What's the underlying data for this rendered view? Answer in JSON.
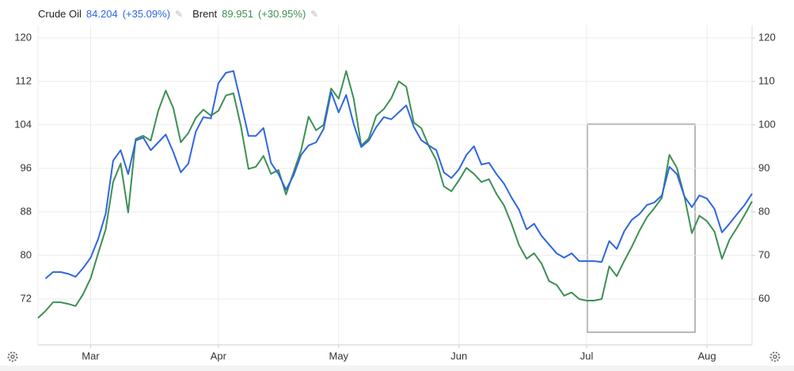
{
  "chart_data": {
    "type": "line",
    "categories": [
      null,
      null,
      null,
      null,
      null,
      null,
      null,
      "Mar",
      null,
      null,
      null,
      null,
      null,
      null,
      null,
      null,
      null,
      null,
      null,
      null,
      null,
      null,
      null,
      null,
      "Apr",
      null,
      null,
      null,
      null,
      null,
      null,
      null,
      null,
      null,
      null,
      null,
      null,
      null,
      null,
      null,
      "May",
      null,
      null,
      null,
      null,
      null,
      null,
      null,
      null,
      null,
      null,
      null,
      null,
      null,
      null,
      null,
      "Jun",
      null,
      null,
      null,
      null,
      null,
      null,
      null,
      null,
      null,
      null,
      null,
      null,
      null,
      null,
      null,
      null,
      "Jul",
      null,
      null,
      null,
      null,
      null,
      null,
      null,
      null,
      null,
      null,
      null,
      null,
      null,
      null,
      null,
      "Aug",
      null,
      null,
      null,
      null,
      null,
      null
    ],
    "series": [
      {
        "name": "Crude Oil",
        "last": "84.204",
        "change": "(+35.09%)",
        "color": "#2f66e0",
        "axis": "y2",
        "values": [
          null,
          64.7,
          66.2,
          66.2,
          65.8,
          65.1,
          67.1,
          69.5,
          73.8,
          79.6,
          91.8,
          94.2,
          88.7,
          96.4,
          97.1,
          94.2,
          96.0,
          97.8,
          93.8,
          89.1,
          91.1,
          98.5,
          101.8,
          101.5,
          109.6,
          112.0,
          112.4,
          105.1,
          97.5,
          97.5,
          99.3,
          91.3,
          88.7,
          85.1,
          88.4,
          93.1,
          95.3,
          96.0,
          99.1,
          107.6,
          102.9,
          106.9,
          100.2,
          94.9,
          96.4,
          99.5,
          101.8,
          101.3,
          102.9,
          104.5,
          99.6,
          96.5,
          95.3,
          94.2,
          89.1,
          87.8,
          89.8,
          93.1,
          95.1,
          90.9,
          91.3,
          88.7,
          86.5,
          83.3,
          80.5,
          76.0,
          77.3,
          74.5,
          72.5,
          70.5,
          69.5,
          70.5,
          68.7,
          68.7,
          68.7,
          68.5,
          73.3,
          71.5,
          75.6,
          78.2,
          79.5,
          81.6,
          82.2,
          83.8,
          90.4,
          88.7,
          83.6,
          81.1,
          83.8,
          83.1,
          80.7,
          75.3,
          77.3,
          79.5,
          81.6,
          84.204
        ]
      },
      {
        "name": "Brent",
        "last": "89.951",
        "change": "(+30.95%)",
        "color": "#3d8f55",
        "values": [
          68.5,
          69.8,
          71.4,
          71.4,
          71.1,
          70.7,
          72.9,
          75.8,
          80.4,
          84.8,
          93.5,
          96.9,
          87.9,
          101.4,
          102.0,
          101.1,
          106.6,
          110.3,
          107.1,
          100.8,
          102.5,
          105.3,
          106.8,
          105.7,
          106.6,
          109.4,
          109.8,
          103.7,
          95.9,
          96.3,
          98.3,
          95.0,
          95.7,
          91.2,
          95.3,
          99.3,
          105.5,
          103.0,
          104.0,
          110.7,
          108.8,
          113.9,
          108.8,
          100.2,
          101.5,
          105.7,
          106.9,
          108.9,
          112.0,
          111.0,
          104.4,
          103.4,
          100.1,
          97.5,
          92.7,
          91.8,
          93.8,
          96.1,
          95.0,
          93.5,
          94.0,
          91.3,
          89.2,
          85.8,
          81.9,
          79.4,
          80.4,
          78.5,
          75.3,
          74.6,
          72.6,
          73.2,
          72.0,
          71.7,
          71.7,
          72.0,
          78.0,
          76.2,
          79.0,
          81.6,
          84.5,
          87.0,
          88.7,
          90.6,
          98.5,
          96.1,
          90.9,
          84.1,
          87.3,
          86.3,
          84.4,
          79.4,
          82.9,
          85.1,
          87.4,
          89.951
        ]
      }
    ],
    "ylim": [
      63.56,
      122.3
    ],
    "yticks": [
      72,
      80,
      88,
      96,
      104,
      112,
      120
    ],
    "y2lim": [
      49.45,
      122.9
    ],
    "y2ticks": [
      60,
      70,
      80,
      90,
      100,
      110,
      120
    ],
    "grid": true
  }
}
